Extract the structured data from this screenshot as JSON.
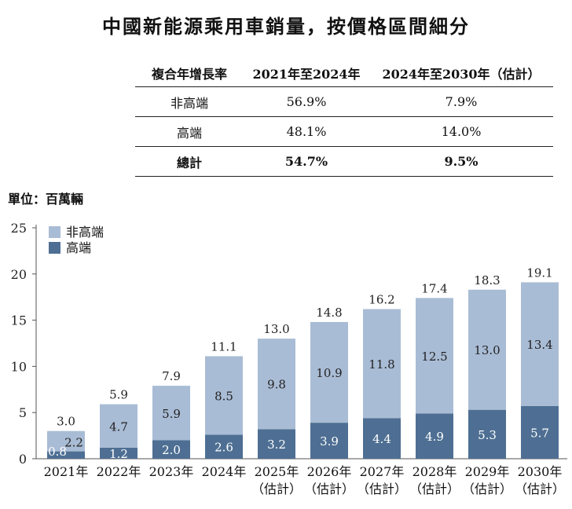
{
  "title": "中國新能源乘用車銷量，按價格區間細分",
  "cagr_table": {
    "headers": [
      "複合年增長率",
      "2021年至2024年",
      "2024年至2030年（估計）"
    ],
    "rows": [
      {
        "label": "非高端",
        "v1": "56.9%",
        "v2": "7.9%"
      },
      {
        "label": "高端",
        "v1": "48.1%",
        "v2": "14.0%"
      },
      {
        "label": "總計",
        "v1": "54.7%",
        "v2": "9.5%"
      }
    ]
  },
  "unit_label": "單位：百萬輛",
  "colors": {
    "non_premium": "#a9bcd5",
    "premium": "#4e6f93",
    "axis": "#555555"
  },
  "chart_data": {
    "type": "bar",
    "stacked": true,
    "categories": [
      "2021年",
      "2022年",
      "2023年",
      "2024年",
      "2025年",
      "2026年",
      "2027年",
      "2028年",
      "2029年",
      "2030年"
    ],
    "category_sublabels": [
      "",
      "",
      "",
      "",
      "（估計）",
      "（估計）",
      "（估計）",
      "（估計）",
      "（估計）",
      "（估計）"
    ],
    "series": [
      {
        "name": "高端",
        "values": [
          0.8,
          1.2,
          2.0,
          2.6,
          3.2,
          3.9,
          4.4,
          4.9,
          5.3,
          5.7
        ]
      },
      {
        "name": "非高端",
        "values": [
          2.2,
          4.7,
          5.9,
          8.5,
          9.8,
          10.9,
          11.8,
          12.5,
          13.0,
          13.4
        ]
      }
    ],
    "totals": [
      3.0,
      5.9,
      7.9,
      11.1,
      13.0,
      14.8,
      16.2,
      17.4,
      18.3,
      19.1
    ],
    "ylim": [
      0,
      25
    ],
    "yticks": [
      0,
      5,
      10,
      15,
      20,
      25
    ],
    "legend": [
      "非高端",
      "高端"
    ],
    "legend_position": "top-left",
    "grid": false
  }
}
